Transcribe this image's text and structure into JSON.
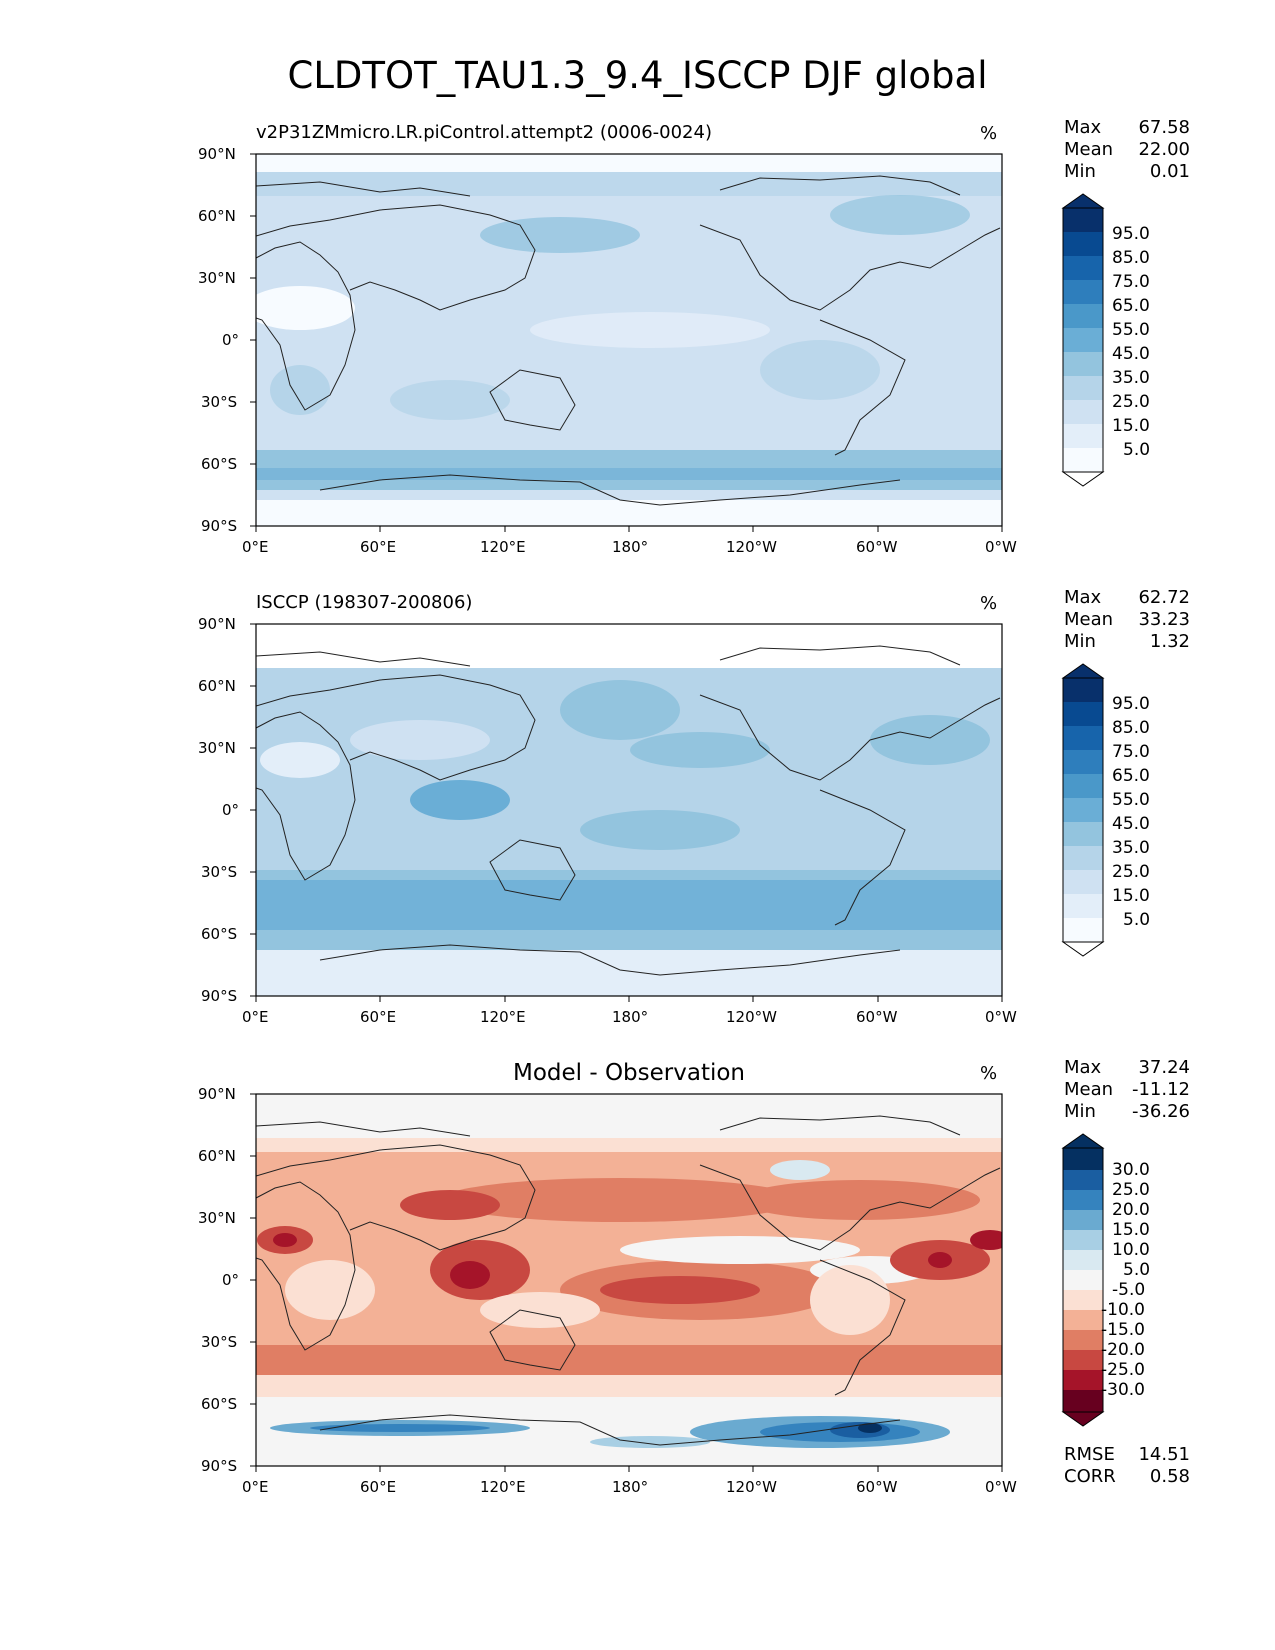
{
  "figure": {
    "title": "CLDTOT_TAU1.3_9.4_ISCCP DJF global"
  },
  "axes": {
    "lat_ticks": [
      "90°N",
      "60°N",
      "30°N",
      "0°",
      "30°S",
      "60°S",
      "90°S"
    ],
    "lon_ticks": [
      "0°E",
      "60°E",
      "120°E",
      "180°",
      "120°W",
      "60°W",
      "0°W"
    ]
  },
  "panels": [
    {
      "title": "v2P31ZMmicro.LR.piControl.attempt2 (0006-0024)",
      "units": "%",
      "stats": {
        "max_label": "Max",
        "max": "67.58",
        "mean_label": "Mean",
        "mean": "22.00",
        "min_label": "Min",
        "min": "0.01"
      },
      "colorbar": {
        "labels": [
          "95.0",
          "85.0",
          "75.0",
          "65.0",
          "55.0",
          "45.0",
          "35.0",
          "25.0",
          "15.0",
          "5.0"
        ]
      },
      "colormap": "Blues"
    },
    {
      "title": "ISCCP (198307-200806)",
      "units": "%",
      "stats": {
        "max_label": "Max",
        "max": "62.72",
        "mean_label": "Mean",
        "mean": "33.23",
        "min_label": "Min",
        "min": "1.32"
      },
      "colorbar": {
        "labels": [
          "95.0",
          "85.0",
          "75.0",
          "65.0",
          "55.0",
          "45.0",
          "35.0",
          "25.0",
          "15.0",
          "5.0"
        ]
      },
      "colormap": "Blues"
    },
    {
      "title": "Model - Observation",
      "units": "%",
      "stats": {
        "max_label": "Max",
        "max": "37.24",
        "mean_label": "Mean",
        "mean": "-11.12",
        "min_label": "Min",
        "min": "-36.26"
      },
      "colorbar": {
        "labels": [
          "30.0",
          "25.0",
          "20.0",
          "15.0",
          "10.0",
          "5.0",
          "-5.0",
          "-10.0",
          "-15.0",
          "-20.0",
          "-25.0",
          "-30.0"
        ]
      },
      "colormap": "RdBu",
      "metrics": {
        "rmse_label": "RMSE",
        "rmse": "14.51",
        "corr_label": "CORR",
        "corr": "0.58"
      }
    }
  ],
  "colors": {
    "blues": [
      "#f7fbff",
      "#e3eef9",
      "#cfe1f2",
      "#b5d4e9",
      "#93c4de",
      "#6aaed6",
      "#4a98c9",
      "#2e7ebc",
      "#1764ab",
      "#084a91",
      "#08306b"
    ],
    "rdbu": [
      "#67001f",
      "#a51429",
      "#c84841",
      "#e07e64",
      "#f3b196",
      "#fbe0d3",
      "#f5f5f5",
      "#d9e9f1",
      "#a8cfe4",
      "#6aaad0",
      "#3583be",
      "#1a5ea1",
      "#053061"
    ]
  }
}
